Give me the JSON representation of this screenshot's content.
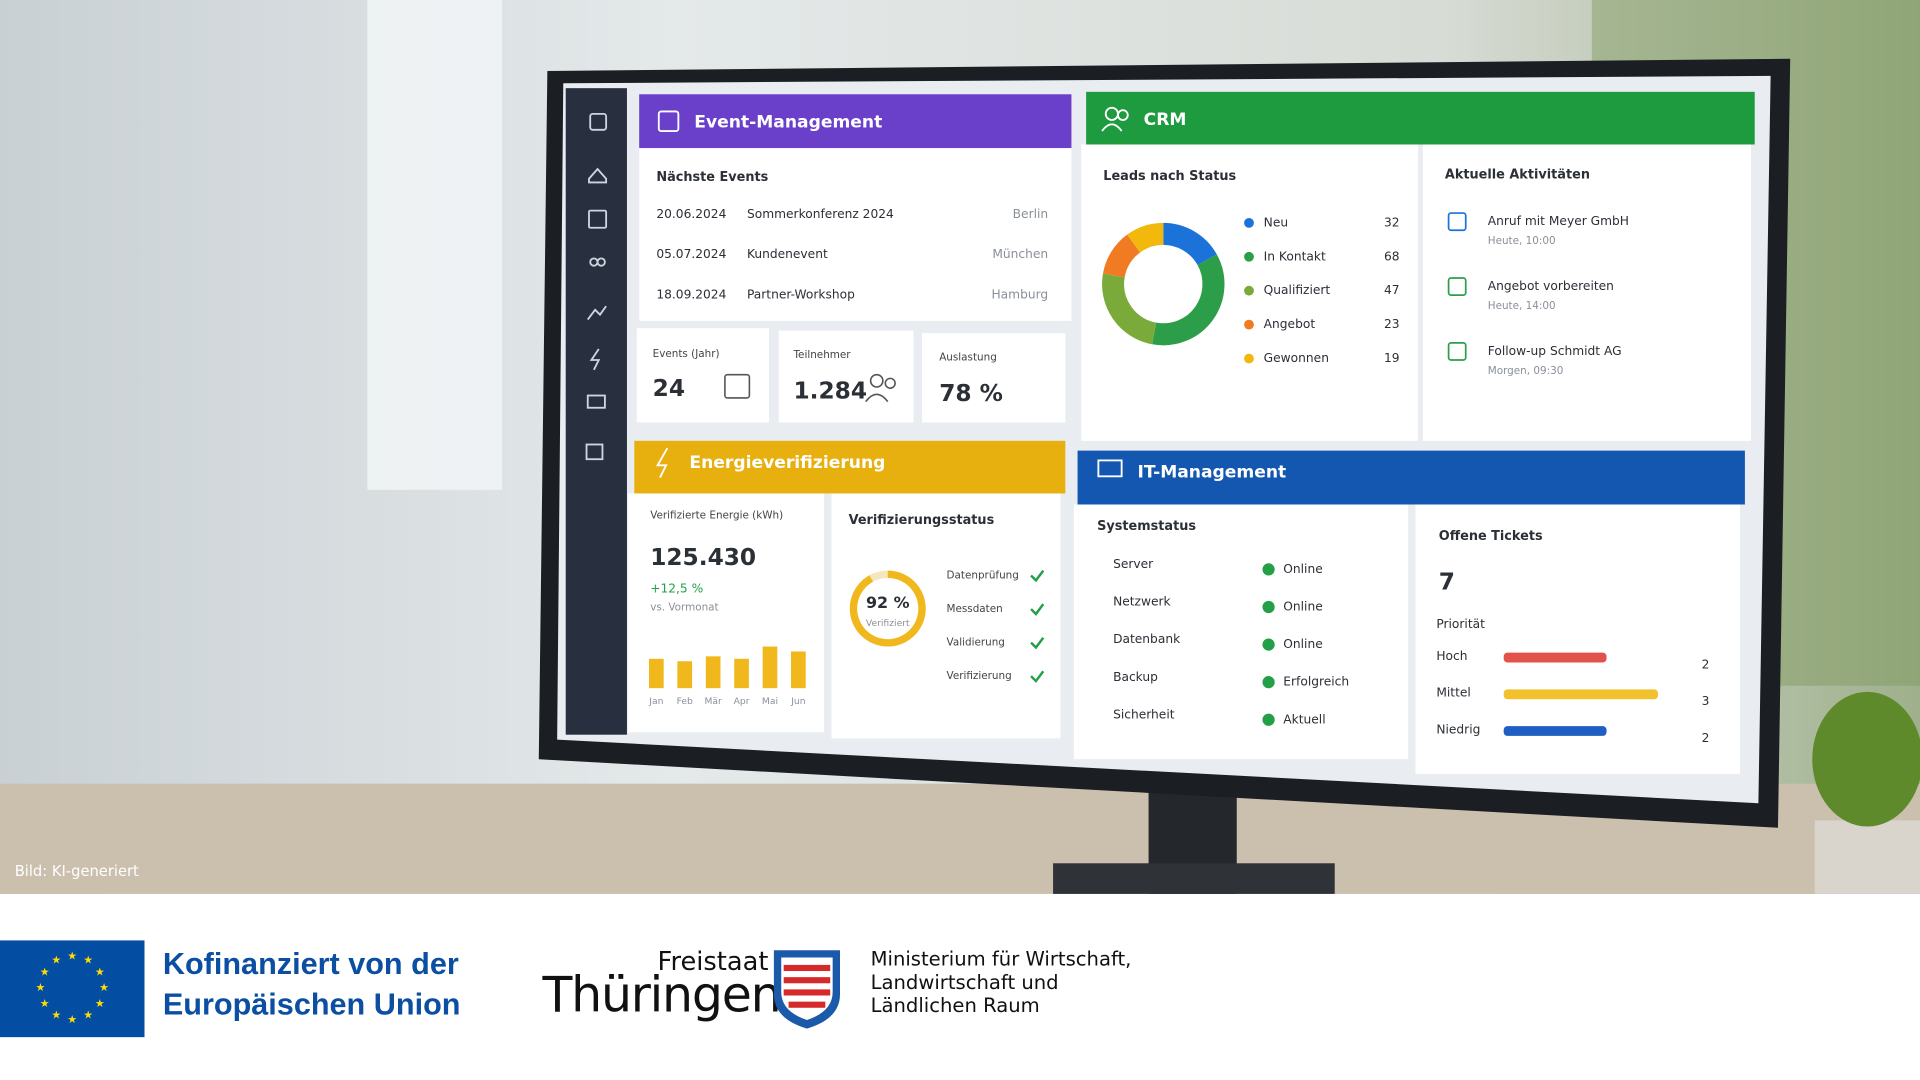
{
  "photo_credit": "Bild: KI-generiert",
  "event_management": {
    "title": "Event-Management",
    "upcoming_title": "Nächste Events",
    "events": [
      {
        "date": "20.06.2024",
        "name": "Sommerkonferenz 2024",
        "city": "Berlin"
      },
      {
        "date": "05.07.2024",
        "name": "Kundenevent",
        "city": "München"
      },
      {
        "date": "18.09.2024",
        "name": "Partner-Workshop",
        "city": "Hamburg"
      }
    ],
    "stats": [
      {
        "label": "Events (Jahr)",
        "value": "24"
      },
      {
        "label": "Teilnehmer",
        "value": "1.284"
      },
      {
        "label": "Auslastung",
        "value": 78,
        "value_label": "78 %"
      }
    ]
  },
  "crm": {
    "title": "CRM",
    "leads": {
      "type": "pie",
      "title": "Leads nach Status",
      "categories": [
        "Neu",
        "In Kontakt",
        "Qualifiziert",
        "Angebot",
        "Gewonnen"
      ],
      "values": [
        32,
        68,
        47,
        23,
        19
      ],
      "colors": [
        "#1b72d8",
        "#2c9e49",
        "#7aab3a",
        "#f07b22",
        "#f3b80c"
      ]
    },
    "activities": {
      "title": "Aktuelle Aktivitäten",
      "items": [
        {
          "title": "Anruf mit Meyer GmbH",
          "time": "Heute, 10:00"
        },
        {
          "title": "Angebot vorbereiten",
          "time": "Heute, 14:00"
        },
        {
          "title": "Follow-up Schmidt AG",
          "time": "Morgen, 09:30"
        }
      ]
    }
  },
  "energy": {
    "title": "Energieverifizierung",
    "metric_label": "Verifizierte Energie (kWh)",
    "metric_value": "125.430",
    "change": "+12,5 %",
    "change_caption": "vs. Vormonat",
    "chart": {
      "type": "bar",
      "categories": [
        "Jan",
        "Feb",
        "Mär",
        "Apr",
        "Mai",
        "Jun"
      ],
      "values": [
        12,
        11,
        13,
        12,
        17,
        15
      ],
      "ylim": [
        0,
        20
      ],
      "color": "#f1b81e"
    },
    "status": {
      "title": "Verifizierungsstatus",
      "value": 92,
      "value_label": "92 %",
      "caption": "Verifiziert",
      "steps": [
        "Datenprüfung",
        "Messdaten",
        "Validierung",
        "Verifizierung"
      ]
    }
  },
  "it": {
    "title": "IT-Management",
    "system": {
      "title": "Systemstatus",
      "items": [
        {
          "name": "Server",
          "status": "Online"
        },
        {
          "name": "Netzwerk",
          "status": "Online"
        },
        {
          "name": "Datenbank",
          "status": "Online"
        },
        {
          "name": "Backup",
          "status": "Erfolgreich"
        },
        {
          "name": "Sicherheit",
          "status": "Aktuell"
        }
      ]
    },
    "tickets": {
      "title": "Offene Tickets",
      "count": 7,
      "priority_title": "Priorität",
      "items": [
        {
          "name": "Hoch",
          "value": 2,
          "color": "#e0524a"
        },
        {
          "name": "Mittel",
          "value": 3,
          "color": "#f2c12e"
        },
        {
          "name": "Niedrig",
          "value": 2,
          "color": "#1f5fc4"
        }
      ],
      "xlim": [
        0,
        3
      ]
    }
  },
  "footer": {
    "eu": [
      "Kofinanziert von der",
      "Europäischen Union"
    ],
    "freistaat": "Freistaat",
    "thueringen": "Thüringen",
    "ministry": [
      "Ministerium für Wirtschaft,",
      "Landwirtschaft und",
      "Ländlichen Raum"
    ]
  }
}
